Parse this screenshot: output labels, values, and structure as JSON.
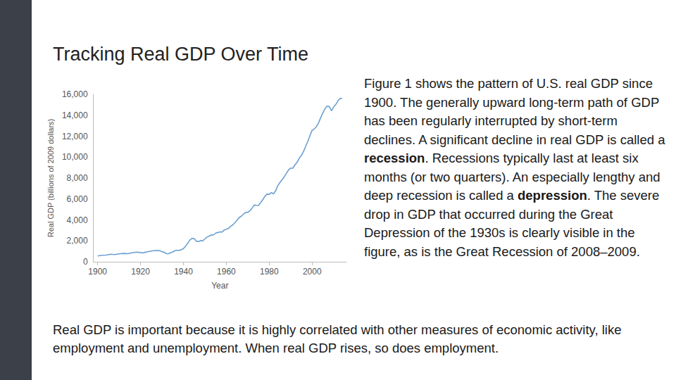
{
  "title": "Tracking Real GDP Over Time",
  "side_text": [
    {
      "text": "Figure 1 shows the pattern of U.S. real GDP since 1900. The generally upward long-term path of GDP has been regularly interrupted by short-term declines. A significant decline in real GDP is called a ",
      "bold": false
    },
    {
      "text": "recession",
      "bold": true
    },
    {
      "text": ". Recessions typically last at least six months (or two quarters).  An especially lengthy and deep recession is called a ",
      "bold": false
    },
    {
      "text": "depression",
      "bold": true
    },
    {
      "text": ". The severe drop in GDP that occurred during the Great Depression of the 1930s is clearly visible in the figure, as is the Great Recession of 2008–2009.",
      "bold": false
    }
  ],
  "bottom_text": "Real GDP is important because it is highly correlated with other measures of economic activity, like employment and unemployment. When real GDP rises, so does employment.",
  "chart_data": {
    "type": "line",
    "xlabel": "Year",
    "ylabel": "Real GDP (billions of 2009 dollars)",
    "color": "#6b9fd1",
    "grid": false,
    "xlim": [
      1898,
      2016
    ],
    "xticks": [
      1900,
      1920,
      1940,
      1960,
      1980,
      2000
    ],
    "ylim": [
      0,
      16000
    ],
    "yticks": [
      0,
      {
        "value": 2000,
        "label": "2,000"
      },
      {
        "value": 4000,
        "label": "4,000"
      },
      {
        "value": 6000,
        "label": "6,000"
      },
      {
        "value": 8000,
        "label": "8,000"
      },
      {
        "value": 10000,
        "label": "10,000"
      },
      {
        "value": 12000,
        "label": "12,000"
      },
      {
        "value": 14000,
        "label": "14,000"
      },
      {
        "value": 16000,
        "label": "16,000"
      }
    ],
    "x": [
      1900,
      1902,
      1904,
      1906,
      1908,
      1910,
      1912,
      1914,
      1916,
      1918,
      1920,
      1921,
      1922,
      1924,
      1926,
      1928,
      1929,
      1930,
      1931,
      1932,
      1933,
      1934,
      1935,
      1936,
      1937,
      1938,
      1939,
      1940,
      1941,
      1942,
      1943,
      1944,
      1945,
      1946,
      1947,
      1948,
      1949,
      1950,
      1951,
      1952,
      1953,
      1954,
      1955,
      1956,
      1957,
      1958,
      1959,
      1960,
      1961,
      1962,
      1963,
      1964,
      1965,
      1966,
      1967,
      1968,
      1969,
      1970,
      1971,
      1972,
      1973,
      1974,
      1975,
      1976,
      1977,
      1978,
      1979,
      1980,
      1981,
      1982,
      1983,
      1984,
      1985,
      1986,
      1987,
      1988,
      1989,
      1990,
      1991,
      1992,
      1993,
      1994,
      1995,
      1996,
      1997,
      1998,
      1999,
      2000,
      2001,
      2002,
      2003,
      2004,
      2005,
      2006,
      2007,
      2008,
      2009,
      2010,
      2011,
      2012,
      2013,
      2014
    ],
    "values": [
      560,
      620,
      640,
      720,
      690,
      760,
      800,
      770,
      860,
      920,
      880,
      840,
      900,
      990,
      1060,
      1080,
      1057,
      967,
      905,
      778,
      778,
      862,
      939,
      1061,
      1115,
      1078,
      1164,
      1266,
      1491,
      1772,
      2074,
      2240,
      2217,
      1960,
      1939,
      2021,
      2011,
      2184,
      2360,
      2456,
      2571,
      2556,
      2739,
      2797,
      2857,
      2836,
      3033,
      3108,
      3188,
      3384,
      3530,
      3735,
      3976,
      4238,
      4355,
      4569,
      4712,
      4722,
      4877,
      5134,
      5419,
      5390,
      5379,
      5670,
      5930,
      6260,
      6459,
      6444,
      6610,
      6484,
      6785,
      7277,
      7586,
      7852,
      8124,
      8465,
      8777,
      8945,
      8939,
      9257,
      9511,
      9895,
      10164,
      10550,
      11023,
      11513,
      12071,
      12565,
      12684,
      12909,
      13271,
      13774,
      14234,
      14614,
      14874,
      14830,
      14419,
      14784,
      15021,
      15355,
      15612,
      15600
    ]
  }
}
